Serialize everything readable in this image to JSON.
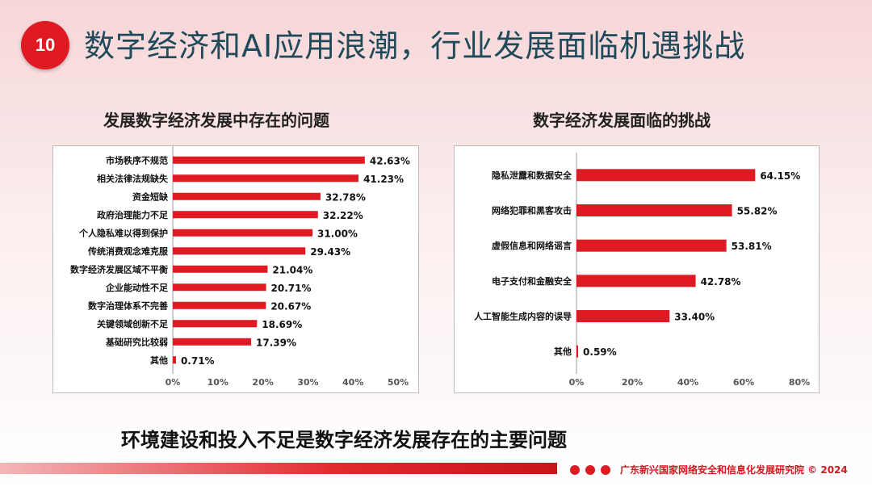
{
  "slide": {
    "number": "10",
    "title": "数字经济和AI应用浪潮，行业发展面临机遇挑战",
    "conclusion": "环境建设和投入不足是数字经济发展存在的主要问题",
    "organization": "广东新兴国家网络安全和信息化发展研究院 © 2024"
  },
  "colors": {
    "accent": "#e01a22",
    "title": "#1f4a5a"
  },
  "chart_data": [
    {
      "type": "bar",
      "orientation": "horizontal",
      "title": "发展数字经济发展中存在的问题",
      "categories": [
        "市场秩序不规范",
        "相关法律法规缺失",
        "资金短缺",
        "政府治理能力不足",
        "个人隐私难以得到保护",
        "传统消费观念难克服",
        "数字经济发展区域不平衡",
        "企业能动性不足",
        "数字治理体系不完善",
        "关键领域创新不足",
        "基础研究比较弱",
        "其他"
      ],
      "values": [
        42.63,
        41.23,
        32.78,
        32.22,
        31.0,
        29.43,
        21.04,
        20.71,
        20.67,
        18.69,
        17.39,
        0.71
      ],
      "value_labels": [
        "42.63%",
        "41.23%",
        "32.78%",
        "32.22%",
        "31.00%",
        "29.43%",
        "21.04%",
        "20.71%",
        "20.67%",
        "18.69%",
        "17.39%",
        "0.71%"
      ],
      "xlim": [
        0,
        50
      ],
      "ticks": [
        "0%",
        "10%",
        "20%",
        "30%",
        "40%",
        "50%"
      ],
      "color": "#e01a22"
    },
    {
      "type": "bar",
      "orientation": "horizontal",
      "title": "数字经济发展面临的挑战",
      "categories": [
        "隐私泄露和数据安全",
        "网络犯罪和黑客攻击",
        "虚假信息和网络谣言",
        "电子支付和金融安全",
        "人工智能生成内容的误导",
        "其他"
      ],
      "values": [
        64.15,
        55.82,
        53.81,
        42.78,
        33.4,
        0.59
      ],
      "value_labels": [
        "64.15%",
        "55.82%",
        "53.81%",
        "42.78%",
        "33.40%",
        "0.59%"
      ],
      "xlim": [
        0,
        80
      ],
      "ticks": [
        "0%",
        "20%",
        "40%",
        "60%",
        "80%"
      ],
      "color": "#e01a22"
    }
  ]
}
